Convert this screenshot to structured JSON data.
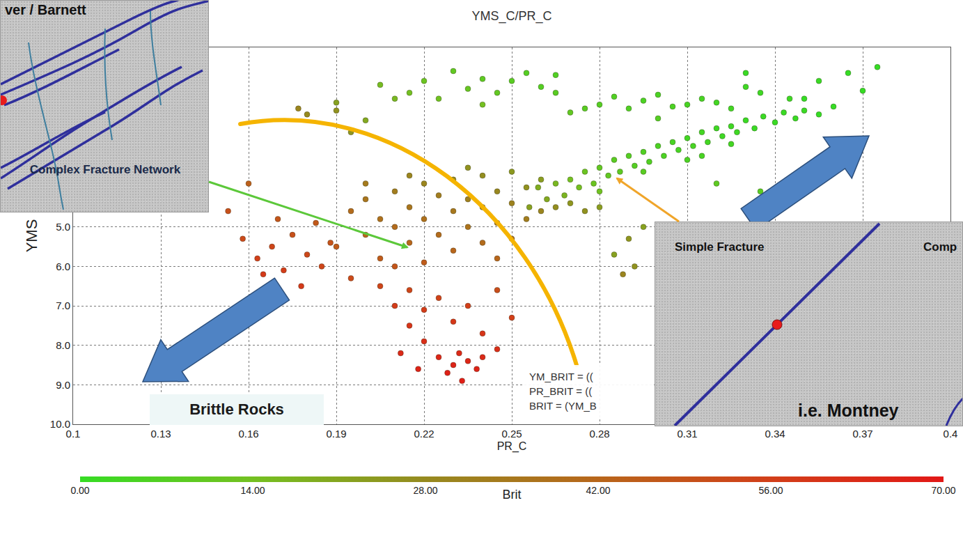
{
  "chart_data": {
    "type": "scatter",
    "title": "YMS_C/PR_C",
    "x_label": "PR_C",
    "y_label": "YMS",
    "marker": "circle",
    "grid": true,
    "xlim": [
      0.1,
      0.4
    ],
    "xticks": [
      0.1,
      0.13,
      0.16,
      0.19,
      0.22,
      0.25,
      0.28,
      0.31,
      0.34,
      0.37,
      0.4
    ],
    "ylim": [
      10,
      0.45
    ],
    "yticks": [
      {
        "value": 5,
        "label": "5.0"
      },
      {
        "value": 6,
        "label": "6.0"
      },
      {
        "value": 7,
        "label": "7.0"
      },
      {
        "value": 8,
        "label": "8.0"
      },
      {
        "value": 9,
        "label": "9.0"
      },
      {
        "value": 10,
        "label": "10.0"
      }
    ],
    "color_bar": {
      "title": "Brit",
      "range": [
        0,
        70
      ],
      "ticks": [
        {
          "value": 0,
          "label": "0.00"
        },
        {
          "value": 14,
          "label": "14.00"
        },
        {
          "value": 28,
          "label": "28.00"
        },
        {
          "value": 42,
          "label": "42.00"
        },
        {
          "value": 56,
          "label": "56.00"
        },
        {
          "value": 70,
          "label": "70.00"
        }
      ]
    },
    "x": [
      0.262,
      0.265,
      0.268,
      0.27,
      0.273,
      0.275,
      0.278,
      0.28,
      0.283,
      0.285,
      0.287,
      0.29,
      0.292,
      0.295,
      0.297,
      0.3,
      0.302,
      0.305,
      0.307,
      0.31,
      0.312,
      0.315,
      0.317,
      0.32,
      0.322,
      0.325,
      0.327,
      0.33,
      0.333,
      0.336,
      0.34,
      0.343,
      0.347,
      0.35,
      0.355,
      0.36,
      0.256,
      0.259,
      0.295,
      0.31,
      0.325,
      0.28,
      0.315,
      0.35,
      0.177,
      0.18,
      0.19,
      0.195,
      0.205,
      0.21,
      0.215,
      0.22,
      0.225,
      0.23,
      0.235,
      0.24,
      0.245,
      0.25,
      0.255,
      0.26,
      0.265,
      0.27,
      0.275,
      0.28,
      0.285,
      0.29,
      0.295,
      0.3,
      0.305,
      0.31,
      0.315,
      0.32,
      0.325,
      0.33,
      0.335,
      0.345,
      0.355,
      0.365,
      0.37,
      0.375,
      0.33,
      0.3,
      0.24,
      0.2,
      0.19,
      0.265,
      0.195,
      0.2,
      0.2,
      0.205,
      0.205,
      0.21,
      0.21,
      0.21,
      0.215,
      0.215,
      0.22,
      0.22,
      0.22,
      0.225,
      0.225,
      0.23,
      0.23,
      0.23,
      0.235,
      0.235,
      0.24,
      0.24,
      0.24,
      0.245,
      0.245,
      0.25,
      0.25,
      0.25,
      0.255,
      0.255,
      0.26,
      0.26,
      0.265,
      0.27,
      0.275,
      0.28,
      0.215,
      0.2,
      0.235,
      0.245,
      0.19,
      0.195,
      0.205,
      0.21,
      0.215,
      0.215,
      0.22,
      0.22,
      0.225,
      0.225,
      0.23,
      0.23,
      0.232,
      0.235,
      0.235,
      0.238,
      0.24,
      0.24,
      0.228,
      0.233,
      0.245,
      0.25,
      0.218,
      0.212,
      0.245,
      0.158,
      0.163,
      0.168,
      0.172,
      0.175,
      0.178,
      0.18,
      0.183,
      0.185,
      0.188,
      0.165,
      0.17,
      0.16,
      0.153,
      0.29,
      0.295,
      0.288,
      0.292,
      0.285,
      0.335,
      0.32
    ],
    "y": [
      4.3,
      3.9,
      4.2,
      3.8,
      4.0,
      3.6,
      3.9,
      3.5,
      3.7,
      3.3,
      3.6,
      3.2,
      3.45,
      3.1,
      3.35,
      2.95,
      3.2,
      2.85,
      3.05,
      2.75,
      2.95,
      2.6,
      2.85,
      2.5,
      2.7,
      2.45,
      2.6,
      2.3,
      2.5,
      2.2,
      2.35,
      2.1,
      2.25,
      2.05,
      2.15,
      1.95,
      4.5,
      4.0,
      3.6,
      3.3,
      2.9,
      4.1,
      3.2,
      1.75,
      2.0,
      2.15,
      1.85,
      2.6,
      1.4,
      1.75,
      1.6,
      1.3,
      1.75,
      1.05,
      1.5,
      1.25,
      1.6,
      1.3,
      1.1,
      1.45,
      1.6,
      2.1,
      2.0,
      1.9,
      1.7,
      2.0,
      1.8,
      1.65,
      1.95,
      1.9,
      1.75,
      1.85,
      2.0,
      1.45,
      1.6,
      1.75,
      1.3,
      1.1,
      1.55,
      0.95,
      1.1,
      2.25,
      1.9,
      2.3,
      2.05,
      1.15,
      4.6,
      4.3,
      5.2,
      4.8,
      5.8,
      4.1,
      5.0,
      6.0,
      4.5,
      5.4,
      3.9,
      4.8,
      5.9,
      4.2,
      5.2,
      3.8,
      4.6,
      5.6,
      4.3,
      5.0,
      3.7,
      4.5,
      5.4,
      4.1,
      4.9,
      3.6,
      4.4,
      5.3,
      4.0,
      4.8,
      3.8,
      4.6,
      4.5,
      4.4,
      4.6,
      4.5,
      3.7,
      3.9,
      3.5,
      5.8,
      5.5,
      6.3,
      6.5,
      7.0,
      6.6,
      7.5,
      7.1,
      7.9,
      6.8,
      8.3,
      7.4,
      8.5,
      8.2,
      7.0,
      8.4,
      8.6,
      7.7,
      8.3,
      8.7,
      8.9,
      8.1,
      7.3,
      8.6,
      8.2,
      6.6,
      5.3,
      5.8,
      5.5,
      6.1,
      5.2,
      6.5,
      5.7,
      4.9,
      6.0,
      5.4,
      6.2,
      4.8,
      3.9,
      4.6,
      5.3,
      5.0,
      6.2,
      6.0,
      5.7,
      4.1,
      3.9
    ],
    "brit": [
      20,
      16,
      17,
      14,
      14,
      12,
      12,
      10,
      10,
      8,
      9,
      7,
      7,
      6,
      6,
      5,
      5,
      4,
      4,
      3,
      4,
      3,
      3,
      2,
      2,
      2,
      2,
      1,
      1,
      1,
      1,
      1,
      1,
      1,
      0,
      0,
      22,
      19,
      8,
      5,
      3,
      13,
      4,
      0,
      30,
      28,
      22,
      25,
      15,
      16,
      14,
      12,
      13,
      10,
      11,
      9,
      10,
      8,
      7,
      7,
      8,
      10,
      8,
      7,
      6,
      6,
      5,
      5,
      5,
      4,
      4,
      3,
      3,
      2,
      2,
      2,
      1,
      0,
      0,
      0,
      1,
      7,
      14,
      20,
      26,
      6,
      40,
      36,
      42,
      38,
      46,
      33,
      40,
      48,
      36,
      42,
      30,
      38,
      46,
      33,
      40,
      28,
      35,
      42,
      32,
      37,
      27,
      33,
      40,
      29,
      35,
      24,
      31,
      38,
      26,
      33,
      23,
      30,
      27,
      25,
      26,
      23,
      30,
      34,
      26,
      42,
      46,
      52,
      54,
      57,
      54,
      60,
      57,
      62,
      55,
      65,
      59,
      66,
      64,
      56,
      65,
      66,
      60,
      64,
      67,
      68,
      62,
      56,
      66,
      64,
      51,
      52,
      56,
      54,
      57,
      50,
      58,
      53,
      47,
      54,
      49,
      58,
      48,
      44,
      50,
      25,
      22,
      30,
      26,
      22,
      8,
      9
    ],
    "annotations": [
      "Brittle Rocks"
    ],
    "formula": [
      "YM_BRIT = ((",
      "PR_BRIT = ((",
      "BRIT = (YM_B"
    ],
    "insets": [
      {
        "title": "ver / Barnett",
        "label": "Complex Fracture Network"
      },
      {
        "labels": [
          "Simple Fracture",
          "Comp"
        ],
        "title": "i.e. Montney"
      }
    ]
  }
}
